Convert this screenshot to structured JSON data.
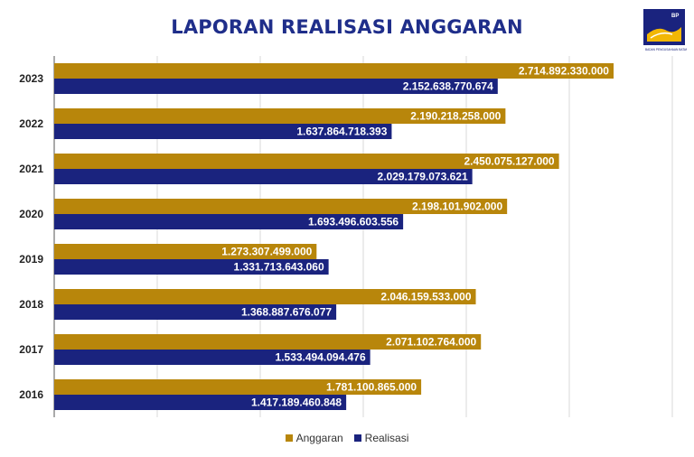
{
  "page": {
    "title": "LAPORAN REALISASI ANGGARAN",
    "logo": {
      "icon": "bp-batam-logo-icon",
      "brand_text": "BP BATAM",
      "sub_text": "BADAN PENGUSAHAAN BATAM"
    }
  },
  "colors": {
    "anggaran": "#B8860B",
    "realisasi": "#1A237E",
    "title": "#1F2E8A",
    "grid": "#D9D9D9"
  },
  "chart_data": {
    "type": "bar",
    "orientation": "horizontal",
    "title": "LAPORAN REALISASI ANGGARAN",
    "categories": [
      "2023",
      "2022",
      "2021",
      "2020",
      "2019",
      "2018",
      "2017",
      "2016"
    ],
    "series": [
      {
        "name": "Anggaran",
        "color": "#B8860B",
        "values": [
          2714892330000,
          2190218258000,
          2450075127000,
          2198101902000,
          1273307499000,
          2046159533000,
          2071102764000,
          1781100865000
        ],
        "labels": [
          "2.714.892.330.000",
          "2.190.218.258.000",
          "2.450.075.127.000",
          "2.198.101.902.000",
          "1.273.307.499.000",
          "2.046.159.533.000",
          "2.071.102.764.000",
          "1.781.100.865.000"
        ]
      },
      {
        "name": "Realisasi",
        "color": "#1A237E",
        "values": [
          2152638770674,
          1637864718393,
          2029179073621,
          1693496603556,
          1331713643060,
          1368887676077,
          1533494094476,
          1417189460848
        ],
        "labels": [
          "2.152.638.770.674",
          "1.637.864.718.393",
          "2.029.179.073.621",
          "1.693.496.603.556",
          "1.331.713.643.060",
          "1.368.887.676.077",
          "1.533.494.094.476",
          "1.417.189.460.848"
        ]
      }
    ],
    "xlim": [
      0,
      3000000000000
    ],
    "grid": true,
    "legend": "bottom"
  }
}
